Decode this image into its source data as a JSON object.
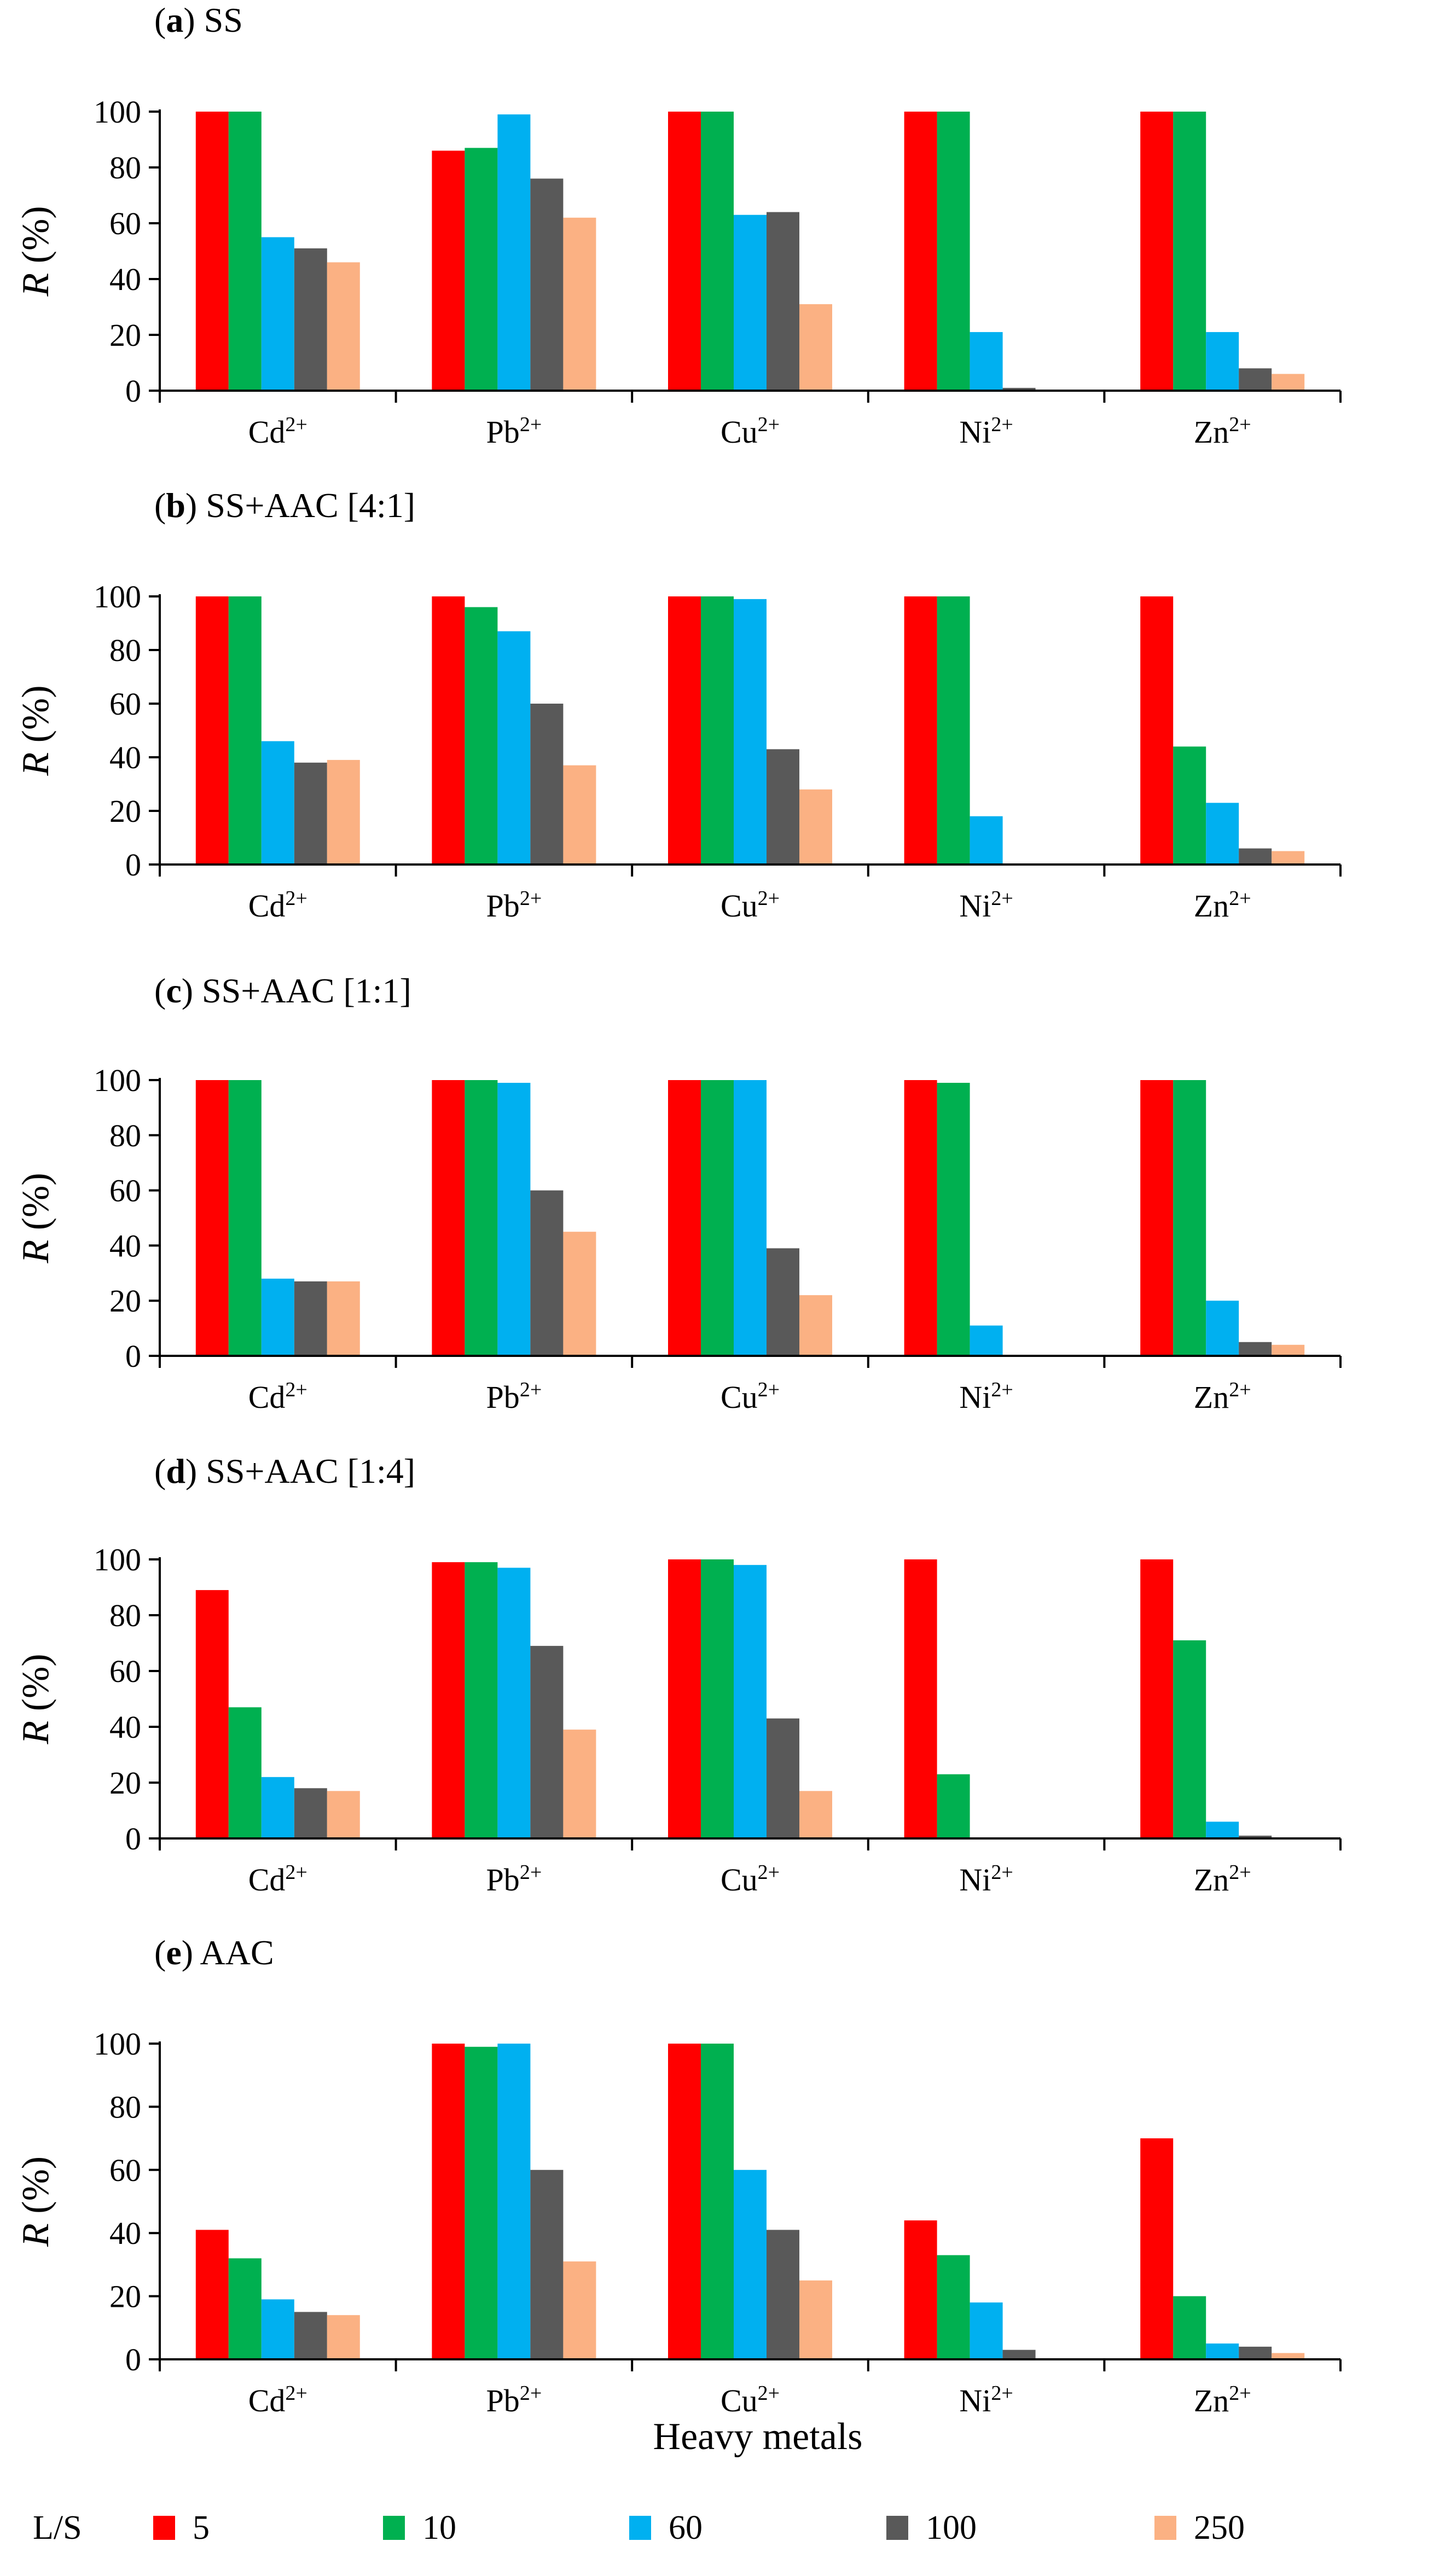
{
  "figure": {
    "xlabel": "Heavy metals",
    "legend_title": "L/S"
  },
  "chart_data": [
    {
      "type": "bar",
      "panel_letter": "a",
      "title": "SS",
      "ylabel_italic": "R",
      "ylabel_rest": " (%)",
      "ylim": [
        0,
        100
      ],
      "yticks": [
        0,
        20,
        40,
        60,
        80,
        100
      ],
      "categories": [
        {
          "base": "Cd",
          "sup": "2+"
        },
        {
          "base": "Pb",
          "sup": "2+"
        },
        {
          "base": "Cu",
          "sup": "2+"
        },
        {
          "base": "Ni",
          "sup": "2+"
        },
        {
          "base": "Zn",
          "sup": "2+"
        }
      ],
      "series": [
        {
          "name": "5",
          "color": "#ff0000",
          "values": [
            100,
            86,
            100,
            100,
            100
          ]
        },
        {
          "name": "10",
          "color": "#00b050",
          "values": [
            100,
            87,
            100,
            100,
            100
          ]
        },
        {
          "name": "60",
          "color": "#00b0f0",
          "values": [
            55,
            99,
            63,
            21,
            21
          ]
        },
        {
          "name": "100",
          "color": "#595959",
          "values": [
            51,
            76,
            64,
            1,
            8
          ]
        },
        {
          "name": "250",
          "color": "#fbb183",
          "values": [
            46,
            62,
            31,
            0,
            6
          ]
        }
      ]
    },
    {
      "type": "bar",
      "panel_letter": "b",
      "title": "SS+AAC [4:1]",
      "ylabel_italic": "R",
      "ylabel_rest": " (%)",
      "ylim": [
        0,
        100
      ],
      "yticks": [
        0,
        20,
        40,
        60,
        80,
        100
      ],
      "categories": [
        {
          "base": "Cd",
          "sup": "2+"
        },
        {
          "base": "Pb",
          "sup": "2+"
        },
        {
          "base": "Cu",
          "sup": "2+"
        },
        {
          "base": "Ni",
          "sup": "2+"
        },
        {
          "base": "Zn",
          "sup": "2+"
        }
      ],
      "series": [
        {
          "name": "5",
          "color": "#ff0000",
          "values": [
            100,
            100,
            100,
            100,
            100
          ]
        },
        {
          "name": "10",
          "color": "#00b050",
          "values": [
            100,
            96,
            100,
            100,
            44
          ]
        },
        {
          "name": "60",
          "color": "#00b0f0",
          "values": [
            46,
            87,
            99,
            18,
            23
          ]
        },
        {
          "name": "100",
          "color": "#595959",
          "values": [
            38,
            60,
            43,
            0,
            6
          ]
        },
        {
          "name": "250",
          "color": "#fbb183",
          "values": [
            39,
            37,
            28,
            0,
            5
          ]
        }
      ]
    },
    {
      "type": "bar",
      "panel_letter": "c",
      "title": "SS+AAC [1:1]",
      "ylabel_italic": "R",
      "ylabel_rest": " (%)",
      "ylim": [
        0,
        100
      ],
      "yticks": [
        0,
        20,
        40,
        60,
        80,
        100
      ],
      "categories": [
        {
          "base": "Cd",
          "sup": "2+"
        },
        {
          "base": "Pb",
          "sup": "2+"
        },
        {
          "base": "Cu",
          "sup": "2+"
        },
        {
          "base": "Ni",
          "sup": "2+"
        },
        {
          "base": "Zn",
          "sup": "2+"
        }
      ],
      "series": [
        {
          "name": "5",
          "color": "#ff0000",
          "values": [
            100,
            100,
            100,
            100,
            100
          ]
        },
        {
          "name": "10",
          "color": "#00b050",
          "values": [
            100,
            100,
            100,
            99,
            100
          ]
        },
        {
          "name": "60",
          "color": "#00b0f0",
          "values": [
            28,
            99,
            100,
            11,
            20
          ]
        },
        {
          "name": "100",
          "color": "#595959",
          "values": [
            27,
            60,
            39,
            0,
            5
          ]
        },
        {
          "name": "250",
          "color": "#fbb183",
          "values": [
            27,
            45,
            22,
            0,
            4
          ]
        }
      ]
    },
    {
      "type": "bar",
      "panel_letter": "d",
      "title": "SS+AAC [1:4]",
      "ylabel_italic": "R",
      "ylabel_rest": " (%)",
      "ylim": [
        0,
        100
      ],
      "yticks": [
        0,
        20,
        40,
        60,
        80,
        100
      ],
      "categories": [
        {
          "base": "Cd",
          "sup": "2+"
        },
        {
          "base": "Pb",
          "sup": "2+"
        },
        {
          "base": "Cu",
          "sup": "2+"
        },
        {
          "base": "Ni",
          "sup": "2+"
        },
        {
          "base": "Zn",
          "sup": "2+"
        }
      ],
      "series": [
        {
          "name": "5",
          "color": "#ff0000",
          "values": [
            89,
            99,
            100,
            100,
            100
          ]
        },
        {
          "name": "10",
          "color": "#00b050",
          "values": [
            47,
            99,
            100,
            23,
            71
          ]
        },
        {
          "name": "60",
          "color": "#00b0f0",
          "values": [
            22,
            97,
            98,
            0,
            6
          ]
        },
        {
          "name": "100",
          "color": "#595959",
          "values": [
            18,
            69,
            43,
            0,
            1
          ]
        },
        {
          "name": "250",
          "color": "#fbb183",
          "values": [
            17,
            39,
            17,
            0,
            0
          ]
        }
      ]
    },
    {
      "type": "bar",
      "panel_letter": "e",
      "title": "AAC",
      "ylabel_italic": "R",
      "ylabel_rest": " (%)",
      "ylim": [
        0,
        100
      ],
      "yticks": [
        0,
        20,
        40,
        60,
        80,
        100
      ],
      "categories": [
        {
          "base": "Cd",
          "sup": "2+"
        },
        {
          "base": "Pb",
          "sup": "2+"
        },
        {
          "base": "Cu",
          "sup": "2+"
        },
        {
          "base": "Ni",
          "sup": "2+"
        },
        {
          "base": "Zn",
          "sup": "2+"
        }
      ],
      "series": [
        {
          "name": "5",
          "color": "#ff0000",
          "values": [
            41,
            100,
            100,
            44,
            70
          ]
        },
        {
          "name": "10",
          "color": "#00b050",
          "values": [
            32,
            99,
            100,
            33,
            20
          ]
        },
        {
          "name": "60",
          "color": "#00b0f0",
          "values": [
            19,
            100,
            60,
            18,
            5
          ]
        },
        {
          "name": "100",
          "color": "#595959",
          "values": [
            15,
            60,
            41,
            3,
            4
          ]
        },
        {
          "name": "250",
          "color": "#fbb183",
          "values": [
            14,
            31,
            25,
            0,
            2
          ]
        }
      ]
    }
  ]
}
